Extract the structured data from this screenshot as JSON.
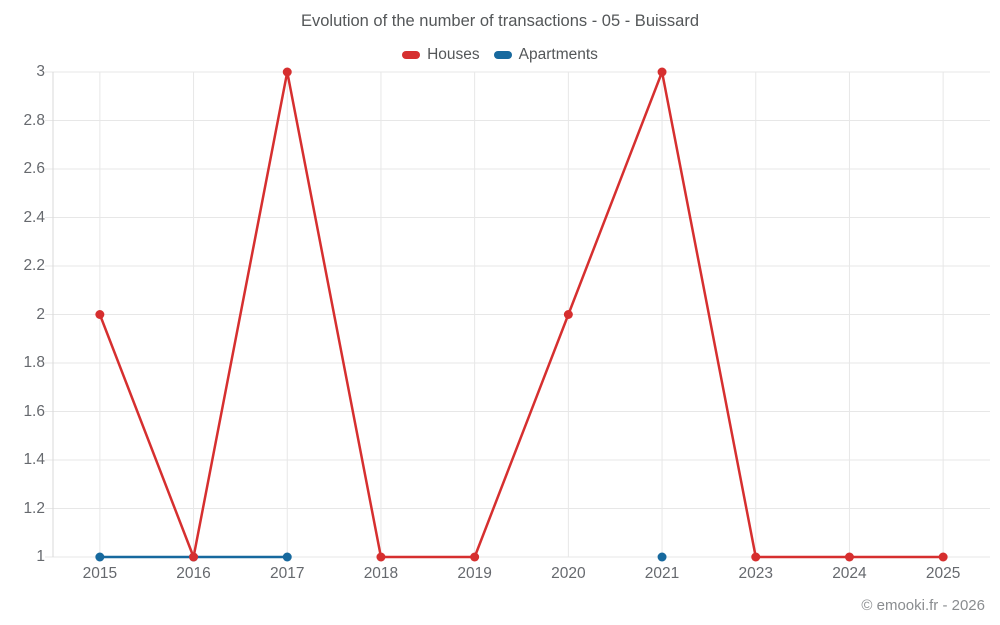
{
  "chart_data": {
    "type": "line",
    "title": "Evolution of the number of transactions - 05 - Buissard",
    "categories": [
      "2015",
      "2016",
      "2017",
      "2018",
      "2019",
      "2020",
      "2021",
      "2023",
      "2024",
      "2025"
    ],
    "series": [
      {
        "name": "Houses",
        "color": "#d62f2f",
        "values": [
          2,
          1,
          3,
          1,
          1,
          2,
          3,
          1,
          1,
          1
        ]
      },
      {
        "name": "Apartments",
        "color": "#17699e",
        "values": [
          1,
          1,
          1,
          null,
          null,
          null,
          1,
          null,
          null,
          null
        ]
      }
    ],
    "xlabel": "",
    "ylabel": "",
    "ylim": [
      1,
      3
    ],
    "yticks": [
      1,
      1.2,
      1.4,
      1.6,
      1.8,
      2,
      2.2,
      2.4,
      2.6,
      2.8,
      3
    ],
    "ytick_labels": [
      "1",
      "1.2",
      "1.4",
      "1.6",
      "1.8",
      "2",
      "2.2",
      "2.4",
      "2.6",
      "2.8",
      "3"
    ],
    "grid": true,
    "legend_position": "top"
  },
  "footer": {
    "watermark": "© emooki.fr - 2026"
  },
  "colors": {
    "grid": "#e7e7e7",
    "axis": "#dadada",
    "tick_text": "#66696e",
    "title_text": "#545759",
    "watermark_text": "#8a8d90"
  }
}
